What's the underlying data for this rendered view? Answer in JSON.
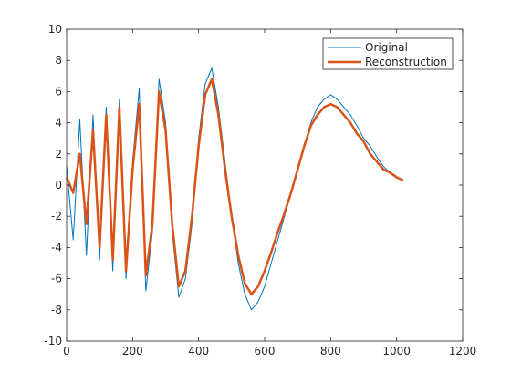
{
  "chart_data": {
    "type": "line",
    "title": "",
    "xlabel": "",
    "ylabel": "",
    "xlim": [
      0,
      1200
    ],
    "ylim": [
      -10,
      10
    ],
    "xticks": [
      0,
      200,
      400,
      600,
      800,
      1000,
      1200
    ],
    "yticks": [
      -10,
      -8,
      -6,
      -4,
      -2,
      0,
      2,
      4,
      6,
      8,
      10
    ],
    "grid": false,
    "legend_location": "top-right",
    "series": [
      {
        "name": "Original",
        "color": "#0072BD",
        "x": [
          0,
          20,
          40,
          60,
          80,
          100,
          120,
          140,
          160,
          180,
          200,
          220,
          240,
          260,
          280,
          300,
          320,
          340,
          360,
          380,
          400,
          420,
          440,
          460,
          480,
          500,
          520,
          540,
          560,
          580,
          600,
          620,
          640,
          660,
          680,
          700,
          720,
          740,
          760,
          780,
          800,
          820,
          840,
          860,
          880,
          900,
          920,
          940,
          960,
          980,
          1000,
          1020
        ],
        "y": [
          1.2,
          -3.5,
          4.2,
          -4.5,
          4.5,
          -4.8,
          5.0,
          -5.5,
          5.5,
          -6.0,
          1.5,
          6.2,
          -6.8,
          -3.0,
          6.8,
          4.0,
          -3.0,
          -7.2,
          -6.0,
          -2.5,
          3.0,
          6.5,
          7.5,
          5.0,
          1.5,
          -2.0,
          -5.0,
          -7.0,
          -8.0,
          -7.5,
          -6.5,
          -5.0,
          -3.5,
          -2.0,
          -0.5,
          1.0,
          2.5,
          4.0,
          5.0,
          5.5,
          5.8,
          5.5,
          5.0,
          4.5,
          3.8,
          3.0,
          2.5,
          1.8,
          1.2,
          0.8,
          0.5,
          0.3
        ]
      },
      {
        "name": "Reconstruction",
        "color": "#D95319",
        "x": [
          0,
          20,
          40,
          60,
          80,
          100,
          120,
          140,
          160,
          180,
          200,
          220,
          240,
          260,
          280,
          300,
          320,
          340,
          360,
          380,
          400,
          420,
          440,
          460,
          480,
          500,
          520,
          540,
          560,
          580,
          600,
          620,
          640,
          660,
          680,
          700,
          720,
          740,
          760,
          780,
          800,
          820,
          840,
          860,
          880,
          900,
          920,
          940,
          960,
          980,
          1000,
          1020
        ],
        "y": [
          0.5,
          -0.5,
          2.0,
          -2.5,
          3.5,
          -4.0,
          4.5,
          -4.8,
          5.0,
          -5.5,
          1.0,
          5.2,
          -5.8,
          -2.5,
          6.0,
          3.5,
          -2.5,
          -6.5,
          -5.5,
          -2.0,
          2.5,
          5.8,
          6.8,
          4.5,
          1.0,
          -2.0,
          -4.5,
          -6.3,
          -7.0,
          -6.5,
          -5.5,
          -4.3,
          -3.0,
          -1.8,
          -0.5,
          1.0,
          2.5,
          3.8,
          4.5,
          5.0,
          5.2,
          5.0,
          4.5,
          4.0,
          3.3,
          2.8,
          2.0,
          1.5,
          1.0,
          0.8,
          0.5,
          0.3
        ]
      }
    ]
  }
}
